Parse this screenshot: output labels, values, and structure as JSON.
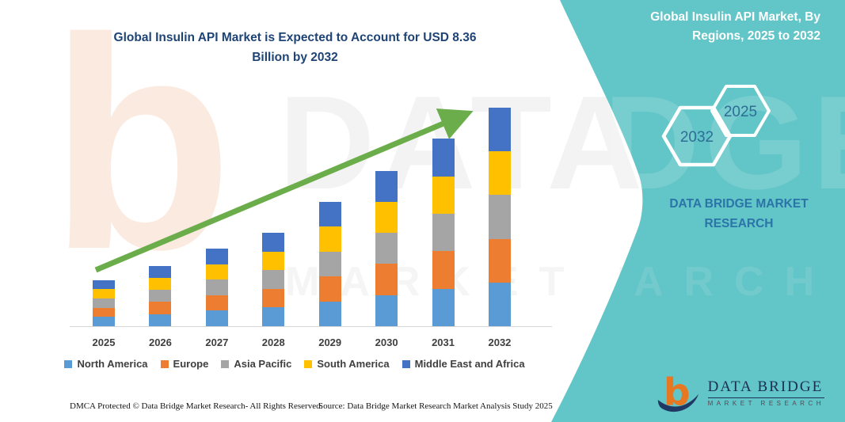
{
  "header": {
    "left_title": "Global Insulin API Market is Expected to Account for USD 8.36\nBillion by 2032",
    "right_title": "Global Insulin API Market, By\nRegions, 2025 to 2032"
  },
  "panel": {
    "background_color": "#62c5c7",
    "hexagons": [
      {
        "label": "2032"
      },
      {
        "label": "2025"
      }
    ],
    "brand_caption": "DATA BRIDGE MARKET\nRESEARCH"
  },
  "logo": {
    "name": "DATA BRIDGE",
    "subtitle": "MARKET RESEARCH",
    "b_glyph": "b",
    "orange": "#e87722",
    "navy": "#1f3864"
  },
  "watermarks": {
    "peach_b": "b",
    "line1_white_area": "DATA BRI",
    "line1_teal_area": "DGE",
    "line2_white_area": "MARKET RESE",
    "line2_teal_area": "ARCH"
  },
  "footer": {
    "left": "DMCA Protected © Data Bridge Market Research-  All Rights Reserved.",
    "source": "Source: Data Bridge Market Research  Market Analysis Study 2025"
  },
  "chart_data": {
    "type": "bar",
    "stacked": true,
    "title": "Global Insulin API Market, By Regions, 2025 to 2032",
    "unit": "USD Billion",
    "categories": [
      "2025",
      "2026",
      "2027",
      "2028",
      "2029",
      "2030",
      "2031",
      "2032"
    ],
    "series": [
      {
        "name": "North America",
        "color": "#5b9bd5",
        "values": [
          0.354,
          0.464,
          0.592,
          0.714,
          0.952,
          1.19,
          1.434,
          1.672
        ]
      },
      {
        "name": "Europe",
        "color": "#ed7d31",
        "values": [
          0.354,
          0.464,
          0.592,
          0.714,
          0.952,
          1.19,
          1.434,
          1.672
        ]
      },
      {
        "name": "Asia Pacific",
        "color": "#a5a5a5",
        "values": [
          0.354,
          0.464,
          0.592,
          0.714,
          0.952,
          1.19,
          1.434,
          1.672
        ]
      },
      {
        "name": "South America",
        "color": "#ffc000",
        "values": [
          0.354,
          0.464,
          0.592,
          0.714,
          0.952,
          1.19,
          1.434,
          1.672
        ]
      },
      {
        "name": "Middle East and Africa",
        "color": "#4472c4",
        "values": [
          0.354,
          0.464,
          0.592,
          0.714,
          0.952,
          1.19,
          1.434,
          1.672
        ]
      }
    ],
    "totals_estimated": [
      1.77,
      2.32,
      2.96,
      3.57,
      4.76,
      5.95,
      7.17,
      8.36
    ],
    "highlight_value": "USD 8.36 Billion by 2032",
    "ylim": [
      0,
      8.5
    ],
    "axis": {
      "x_visible": true,
      "y_visible": false,
      "grid": false
    },
    "legend_position": "bottom",
    "trend_arrow": {
      "color": "#6bad4a",
      "direction": "up-right"
    }
  }
}
